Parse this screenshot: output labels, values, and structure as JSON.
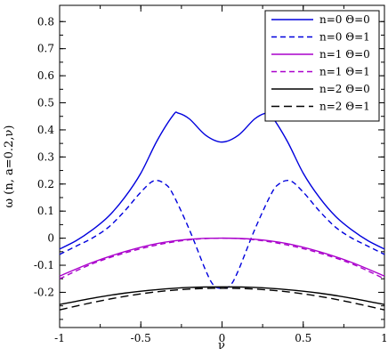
{
  "chart_data": {
    "type": "line",
    "title": "",
    "xlabel": "ν",
    "ylabel": "ω (n, a=0.2,ν)",
    "xlim": [
      -1,
      1
    ],
    "ylim": [
      -0.33,
      0.86
    ],
    "xticks": [
      -1,
      -0.5,
      0,
      0.5,
      1
    ],
    "xtick_labels": [
      "-1",
      "-0.5",
      "0",
      "0.5",
      "1"
    ],
    "yticks": [
      -0.2,
      -0.1,
      0,
      0.1,
      0.2,
      0.3,
      0.4,
      0.5,
      0.6,
      0.7,
      0.8
    ],
    "ytick_labels": [
      "-0.2",
      "-0.1",
      "0",
      "0.1",
      "0.2",
      "0.3",
      "0.4",
      "0.5",
      "0.6",
      "0.7",
      "0.8"
    ],
    "grid": false,
    "legend_position": "top-right",
    "series": [
      {
        "name": "n=0 Θ=0",
        "color": "#0000dd",
        "dash": "solid",
        "x": [
          -1,
          -0.9,
          -0.8,
          -0.7,
          -0.6,
          -0.5,
          -0.4,
          -0.3,
          -0.27,
          -0.2,
          -0.1,
          0,
          0.1,
          0.2,
          0.27,
          0.3,
          0.4,
          0.5,
          0.6,
          0.7,
          0.8,
          0.9,
          1
        ],
        "y": [
          -0.04,
          -0.01,
          0.03,
          0.08,
          0.15,
          0.24,
          0.36,
          0.455,
          0.462,
          0.44,
          0.38,
          0.355,
          0.38,
          0.44,
          0.462,
          0.455,
          0.36,
          0.24,
          0.15,
          0.08,
          0.03,
          -0.01,
          -0.04
        ]
      },
      {
        "name": "n=0 Θ=1",
        "color": "#0000dd",
        "dash": "6,4",
        "x": [
          -1,
          -0.9,
          -0.8,
          -0.7,
          -0.6,
          -0.5,
          -0.42,
          -0.35,
          -0.3,
          -0.2,
          -0.1,
          -0.05,
          0,
          0.05,
          0.1,
          0.2,
          0.3,
          0.35,
          0.42,
          0.5,
          0.6,
          0.7,
          0.8,
          0.9,
          1
        ],
        "y": [
          -0.06,
          -0.03,
          0.0,
          0.04,
          0.1,
          0.17,
          0.212,
          0.2,
          0.16,
          0.03,
          -0.12,
          -0.175,
          -0.185,
          -0.175,
          -0.12,
          0.03,
          0.16,
          0.2,
          0.212,
          0.17,
          0.1,
          0.04,
          0.0,
          -0.03,
          -0.06
        ]
      },
      {
        "name": "n=1 Θ=0",
        "color": "#aa00cc",
        "dash": "solid",
        "x": [
          -1,
          -0.8,
          -0.6,
          -0.4,
          -0.2,
          0,
          0.2,
          0.4,
          0.6,
          0.8,
          1
        ],
        "y": [
          -0.14,
          -0.09,
          -0.05,
          -0.02,
          -0.004,
          0.0,
          -0.004,
          -0.02,
          -0.05,
          -0.09,
          -0.14
        ]
      },
      {
        "name": "n=1 Θ=1",
        "color": "#aa00cc",
        "dash": "6,4",
        "x": [
          -1,
          -0.8,
          -0.6,
          -0.4,
          -0.2,
          0,
          0.2,
          0.4,
          0.6,
          0.8,
          1
        ],
        "y": [
          -0.15,
          -0.095,
          -0.055,
          -0.025,
          -0.006,
          0.0,
          -0.006,
          -0.025,
          -0.055,
          -0.095,
          -0.15
        ]
      },
      {
        "name": "n=2 Θ=0",
        "color": "#000000",
        "dash": "solid",
        "x": [
          -1,
          -0.8,
          -0.6,
          -0.4,
          -0.2,
          0,
          0.2,
          0.4,
          0.6,
          0.8,
          1
        ],
        "y": [
          -0.245,
          -0.222,
          -0.203,
          -0.19,
          -0.182,
          -0.18,
          -0.182,
          -0.19,
          -0.203,
          -0.222,
          -0.245
        ]
      },
      {
        "name": "n=2 Θ=1",
        "color": "#000000",
        "dash": "9,5",
        "x": [
          -1,
          -0.8,
          -0.6,
          -0.4,
          -0.2,
          0,
          0.2,
          0.4,
          0.6,
          0.8,
          1
        ],
        "y": [
          -0.265,
          -0.238,
          -0.215,
          -0.198,
          -0.188,
          -0.185,
          -0.188,
          -0.198,
          -0.215,
          -0.238,
          -0.265
        ]
      }
    ]
  }
}
